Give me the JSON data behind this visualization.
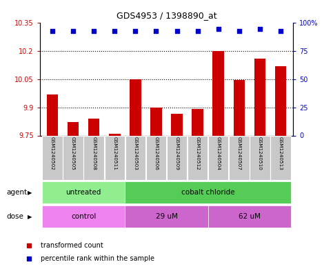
{
  "title": "GDS4953 / 1398890_at",
  "samples": [
    "GSM1240502",
    "GSM1240505",
    "GSM1240508",
    "GSM1240511",
    "GSM1240503",
    "GSM1240506",
    "GSM1240509",
    "GSM1240512",
    "GSM1240504",
    "GSM1240507",
    "GSM1240510",
    "GSM1240513"
  ],
  "bar_values": [
    9.97,
    9.82,
    9.84,
    9.761,
    10.05,
    9.9,
    9.865,
    9.893,
    10.2,
    10.045,
    10.16,
    10.12
  ],
  "percentile_values": [
    93,
    93,
    93,
    93,
    93,
    93,
    93,
    93,
    95,
    93,
    95,
    93
  ],
  "bar_color": "#cc0000",
  "percentile_color": "#0000cc",
  "ymin": 9.75,
  "ymax": 10.35,
  "yticks": [
    9.75,
    9.9,
    10.05,
    10.2,
    10.35
  ],
  "y2min": 0,
  "y2max": 100,
  "y2ticks": [
    0,
    25,
    50,
    75,
    100
  ],
  "y2ticklabels": [
    "0",
    "25",
    "50",
    "75",
    "100%"
  ],
  "dotted_lines": [
    9.9,
    10.05,
    10.2
  ],
  "agent_groups": [
    {
      "label": "untreated",
      "start": 0,
      "end": 4,
      "color": "#90ee90"
    },
    {
      "label": "cobalt chloride",
      "start": 4,
      "end": 12,
      "color": "#55cc55"
    }
  ],
  "dose_colors": [
    "#ee82ee",
    "#cc66cc",
    "#cc66cc"
  ],
  "dose_groups": [
    {
      "label": "control",
      "start": 0,
      "end": 4
    },
    {
      "label": "29 uM",
      "start": 4,
      "end": 8
    },
    {
      "label": "62 uM",
      "start": 8,
      "end": 12
    }
  ],
  "legend_items": [
    {
      "label": "transformed count",
      "color": "#cc0000"
    },
    {
      "label": "percentile rank within the sample",
      "color": "#0000cc"
    }
  ],
  "bar_width": 0.55,
  "ylabel_color": "#cc0000",
  "y2label_color": "#0000cc",
  "title_color": "#000000",
  "agent_row_label": "agent",
  "dose_row_label": "dose",
  "sample_box_color": "#c8c8c8",
  "sample_text_color": "#000000"
}
